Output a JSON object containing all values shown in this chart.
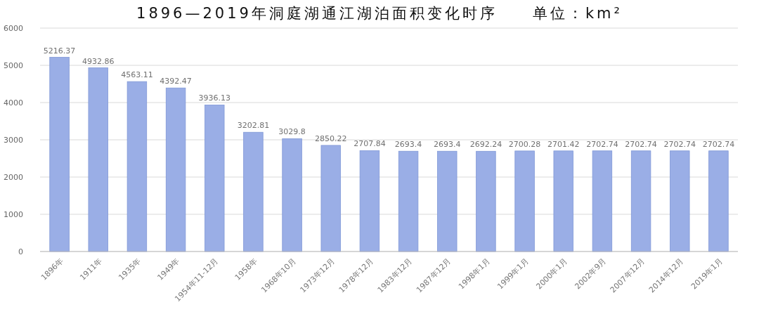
{
  "chart_data": {
    "type": "bar",
    "title": "1896—2019年洞庭湖通江湖泊面积变化时序　　单位：km²",
    "categories": [
      "1896年",
      "1911年",
      "1935年",
      "1949年",
      "1954年11-12月",
      "1958年",
      "1968年10月",
      "1973年12月",
      "1978年12月",
      "1983年12月",
      "1987年12月",
      "1998年1月",
      "1999年1月",
      "2000年1月",
      "2002年9月",
      "2007年12月",
      "2014年12月",
      "2019年1月"
    ],
    "values": [
      5216.37,
      4932.86,
      4563.11,
      4392.47,
      3936.13,
      3202.81,
      3029.8,
      2850.22,
      2707.84,
      2693.4,
      2693.4,
      2692.24,
      2700.28,
      2701.42,
      2702.74,
      2702.74,
      2702.74,
      2702.74
    ],
    "color": "#9aaee6",
    "ylim": [
      0,
      6000
    ],
    "yticks": [
      0,
      1000,
      2000,
      3000,
      4000,
      5000,
      6000
    ],
    "grid": "y",
    "data_labels": true
  }
}
